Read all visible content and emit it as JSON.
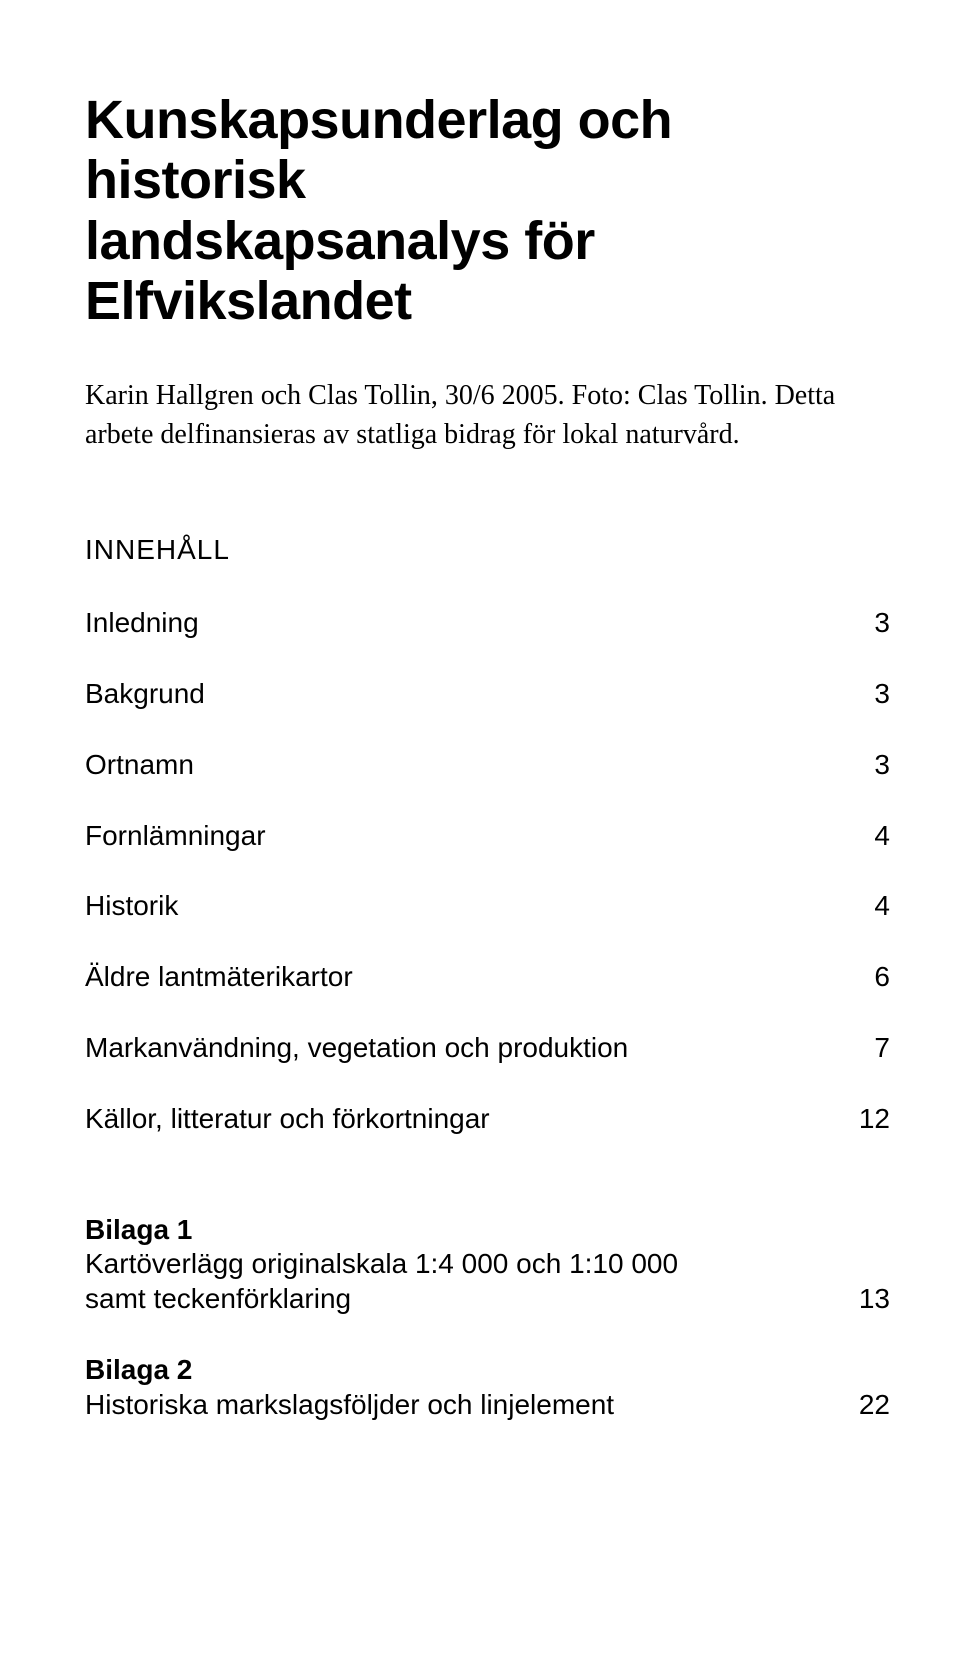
{
  "title_line1": "Kunskapsunderlag och historisk",
  "title_line2": "landskapsanalys för Elfvikslandet",
  "byline": "Karin Hallgren och Clas Tollin, 30/6 2005. Foto: Clas Tollin. Detta arbete delfinansieras av statliga bidrag för lokal naturvård.",
  "toc_heading": "INNEHÅLL",
  "toc": [
    {
      "label": "Inledning",
      "page": "3"
    },
    {
      "label": "Bakgrund",
      "page": "3"
    },
    {
      "label": "Ortnamn",
      "page": "3"
    },
    {
      "label": "Fornlämningar",
      "page": "4"
    },
    {
      "label": "Historik",
      "page": "4"
    },
    {
      "label": "Äldre lantmäterikartor",
      "page": "6"
    },
    {
      "label": "Markanvändning, vegetation och produktion",
      "page": "7"
    },
    {
      "label": "Källor, litteratur och förkortningar",
      "page": "12"
    }
  ],
  "appendix1": {
    "title": "Bilaga 1",
    "desc_line1": "Kartöverlägg originalskala 1:4 000 och 1:10 000",
    "desc_line2": "samt teckenförklaring",
    "page": "13"
  },
  "appendix2": {
    "title": "Bilaga 2",
    "desc": "Historiska markslagsföljder och linjelement",
    "page": "22"
  },
  "colors": {
    "background": "#ffffff",
    "text": "#000000"
  }
}
